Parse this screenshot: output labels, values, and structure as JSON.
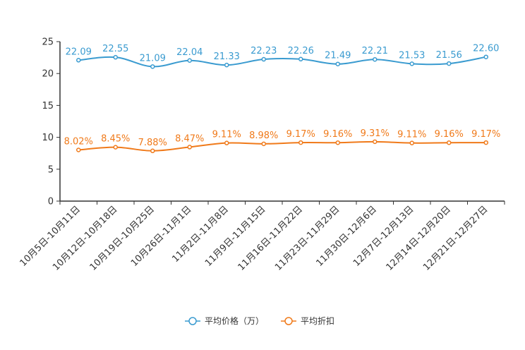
{
  "chart_data": {
    "type": "line",
    "categories": [
      "10月5日-10月11日",
      "10月12日-10月18日",
      "10月19日-10月25日",
      "10月26日-11月1日",
      "11月2日-11月8日",
      "11月9日-11月15日",
      "11月16日-11月22日",
      "11月23日-11月29日",
      "11月30日-12月6日",
      "12月7日-12月13日",
      "12月14日-12月20日",
      "12月21日-12月27日"
    ],
    "ylim": [
      0,
      25
    ],
    "yticks": [
      0,
      5,
      10,
      15,
      20,
      25
    ],
    "series": [
      {
        "name": "平均价格（万）",
        "color": "#3a9bd0",
        "values": [
          22.09,
          22.55,
          21.09,
          22.04,
          21.33,
          22.23,
          22.26,
          21.49,
          22.21,
          21.53,
          21.56,
          22.6
        ],
        "labels": [
          "22.09",
          "22.55",
          "21.09",
          "22.04",
          "21.33",
          "22.23",
          "22.26",
          "21.49",
          "22.21",
          "21.53",
          "21.56",
          "22.60"
        ]
      },
      {
        "name": "平均折扣",
        "color": "#f07a1a",
        "values": [
          8.02,
          8.45,
          7.88,
          8.47,
          9.11,
          8.98,
          9.17,
          9.16,
          9.31,
          9.11,
          9.16,
          9.17
        ],
        "labels": [
          "8.02%",
          "8.45%",
          "7.88%",
          "8.47%",
          "9.11%",
          "8.98%",
          "9.17%",
          "9.16%",
          "9.31%",
          "9.11%",
          "9.16%",
          "9.17%"
        ]
      }
    ]
  }
}
